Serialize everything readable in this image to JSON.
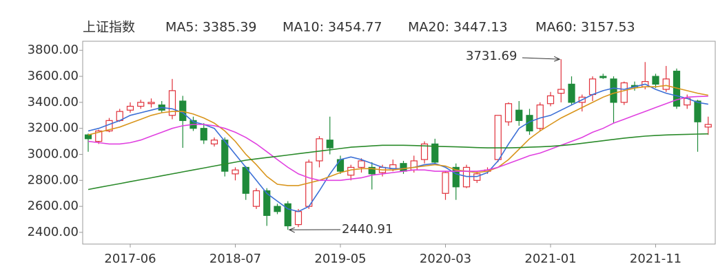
{
  "chart_data": {
    "type": "candlestick",
    "title": "上证指数",
    "categories": [
      null,
      null,
      null,
      null,
      "2017-06",
      null,
      null,
      null,
      null,
      null,
      null,
      null,
      null,
      null,
      "2018-07",
      null,
      null,
      null,
      null,
      null,
      null,
      null,
      null,
      null,
      "2019-05",
      null,
      null,
      null,
      null,
      null,
      null,
      null,
      null,
      null,
      "2020-03",
      null,
      null,
      null,
      null,
      null,
      null,
      null,
      null,
      null,
      "2021-01",
      null,
      null,
      null,
      null,
      null,
      null,
      null,
      null,
      null,
      "2021-11",
      null,
      null,
      null,
      null,
      null
    ],
    "open": [
      3150,
      3100,
      3180,
      3260,
      3340,
      3370,
      3390,
      3380,
      3300,
      3410,
      3260,
      3200,
      3080,
      3110,
      2850,
      2900,
      2600,
      2720,
      2600,
      2620,
      2460,
      2600,
      2950,
      3110,
      2960,
      2840,
      2900,
      2900,
      2860,
      2890,
      2930,
      2880,
      2960,
      3080,
      2700,
      2900,
      2750,
      2800,
      2870,
      2960,
      3250,
      3340,
      3300,
      3200,
      3390,
      3470,
      3540,
      3400,
      3460,
      3600,
      3580,
      3400,
      3530,
      3520,
      3600,
      3500,
      3640,
      3380,
      3410,
      3210
    ],
    "high": [
      3160,
      3190,
      3280,
      3350,
      3400,
      3420,
      3430,
      3410,
      3580,
      3450,
      3290,
      3240,
      3130,
      3130,
      2900,
      2910,
      2740,
      2740,
      2620,
      2640,
      2580,
      2960,
      3140,
      3290,
      2990,
      2920,
      2970,
      2940,
      2920,
      2960,
      2950,
      2990,
      3100,
      3120,
      2870,
      2930,
      2920,
      2870,
      2900,
      3300,
      3400,
      3410,
      3350,
      3400,
      3480,
      3731.69,
      3600,
      3460,
      3600,
      3620,
      3600,
      3560,
      3560,
      3710,
      3620,
      3680,
      3660,
      3460,
      3420,
      3290
    ],
    "low": [
      3020,
      3080,
      3170,
      3250,
      3320,
      3350,
      3360,
      3320,
      3270,
      3050,
      3180,
      3080,
      3060,
      2830,
      2800,
      2650,
      2580,
      2450,
      2540,
      2420,
      2440.91,
      2580,
      2900,
      3000,
      2850,
      2800,
      2860,
      2730,
      2830,
      2870,
      2850,
      2860,
      2930,
      2920,
      2650,
      2650,
      2740,
      2780,
      2850,
      2940,
      3220,
      3220,
      3150,
      3180,
      3370,
      3400,
      3380,
      3330,
      3410,
      3580,
      3240,
      3380,
      3490,
      3500,
      3510,
      3480,
      3350,
      3350,
      3020,
      3150
    ],
    "close": [
      3120,
      3180,
      3260,
      3330,
      3370,
      3400,
      3400,
      3340,
      3490,
      3260,
      3200,
      3110,
      3110,
      2870,
      2880,
      2700,
      2720,
      2530,
      2560,
      2450,
      2560,
      2940,
      3120,
      3050,
      2870,
      2900,
      2950,
      2850,
      2900,
      2920,
      2870,
      2950,
      3080,
      2940,
      2860,
      2750,
      2900,
      2850,
      2880,
      3300,
      3390,
      3260,
      3180,
      3380,
      3450,
      3500,
      3400,
      3440,
      3580,
      3590,
      3400,
      3550,
      3520,
      3560,
      3540,
      3580,
      3370,
      3430,
      3250,
      3230
    ],
    "up_color": "#e0303a",
    "down_color": "#1f8a3a",
    "series": [
      {
        "name": "MA5: 3385.39",
        "color": "#3b6fd6",
        "values": [
          3180,
          3200,
          3230,
          3260,
          3300,
          3320,
          3340,
          3360,
          3350,
          3320,
          3250,
          3230,
          3200,
          3100,
          3000,
          2900,
          2800,
          2700,
          2640,
          2580,
          2560,
          2600,
          2720,
          2850,
          2960,
          2980,
          2960,
          2930,
          2900,
          2890,
          2890,
          2900,
          2920,
          2930,
          2900,
          2850,
          2830,
          2830,
          2860,
          2950,
          3080,
          3200,
          3250,
          3280,
          3300,
          3340,
          3380,
          3420,
          3460,
          3490,
          3510,
          3500,
          3520,
          3540,
          3500,
          3470,
          3450,
          3430,
          3400,
          3385.39
        ]
      },
      {
        "name": "MA10: 3454.77",
        "color": "#d9951c",
        "values": [
          3150,
          3170,
          3190,
          3210,
          3240,
          3270,
          3300,
          3320,
          3330,
          3330,
          3310,
          3280,
          3240,
          3180,
          3100,
          3000,
          2920,
          2830,
          2770,
          2760,
          2760,
          2780,
          2800,
          2830,
          2860,
          2880,
          2890,
          2890,
          2880,
          2880,
          2890,
          2900,
          2910,
          2920,
          2910,
          2880,
          2870,
          2860,
          2870,
          2900,
          2960,
          3040,
          3120,
          3180,
          3230,
          3280,
          3320,
          3360,
          3400,
          3440,
          3470,
          3490,
          3510,
          3520,
          3520,
          3530,
          3510,
          3490,
          3470,
          3454.77
        ]
      },
      {
        "name": "MA20: 3447.13",
        "color": "#e040e0",
        "values": [
          3100,
          3090,
          3080,
          3080,
          3090,
          3110,
          3140,
          3170,
          3200,
          3220,
          3230,
          3230,
          3220,
          3200,
          3170,
          3130,
          3080,
          3020,
          2960,
          2900,
          2850,
          2820,
          2800,
          2800,
          2800,
          2810,
          2820,
          2840,
          2850,
          2860,
          2870,
          2880,
          2880,
          2870,
          2870,
          2870,
          2870,
          2870,
          2880,
          2900,
          2930,
          2960,
          2990,
          3010,
          3040,
          3070,
          3100,
          3130,
          3170,
          3200,
          3240,
          3270,
          3300,
          3330,
          3360,
          3390,
          3420,
          3440,
          3445,
          3447.13
        ]
      },
      {
        "name": "MA60: 3157.53",
        "color": "#2a8a2a",
        "values": [
          2730,
          2745,
          2760,
          2775,
          2790,
          2805,
          2820,
          2835,
          2850,
          2865,
          2880,
          2895,
          2910,
          2925,
          2940,
          2955,
          2965,
          2975,
          2985,
          2995,
          3005,
          3015,
          3025,
          3035,
          3045,
          3055,
          3060,
          3065,
          3070,
          3070,
          3070,
          3068,
          3065,
          3062,
          3060,
          3058,
          3055,
          3052,
          3050,
          3050,
          3050,
          3052,
          3055,
          3058,
          3062,
          3068,
          3075,
          3085,
          3095,
          3105,
          3115,
          3125,
          3133,
          3140,
          3145,
          3149,
          3152,
          3154,
          3156,
          3157.53
        ]
      }
    ],
    "annotations": [
      "3731.69",
      "2440.91"
    ],
    "ylim": [
      2310,
      3870
    ],
    "yticks": [
      {
        "value": 2400,
        "label": "2400.00"
      },
      {
        "value": 2600,
        "label": "2600.00"
      },
      {
        "value": 2800,
        "label": "2800.00"
      },
      {
        "value": 3000,
        "label": "3000.00"
      },
      {
        "value": 3200,
        "label": "3200.00"
      },
      {
        "value": 3400,
        "label": "3400.00"
      },
      {
        "value": 3600,
        "label": "3600.00"
      },
      {
        "value": 3800,
        "label": "3800.00"
      }
    ]
  }
}
